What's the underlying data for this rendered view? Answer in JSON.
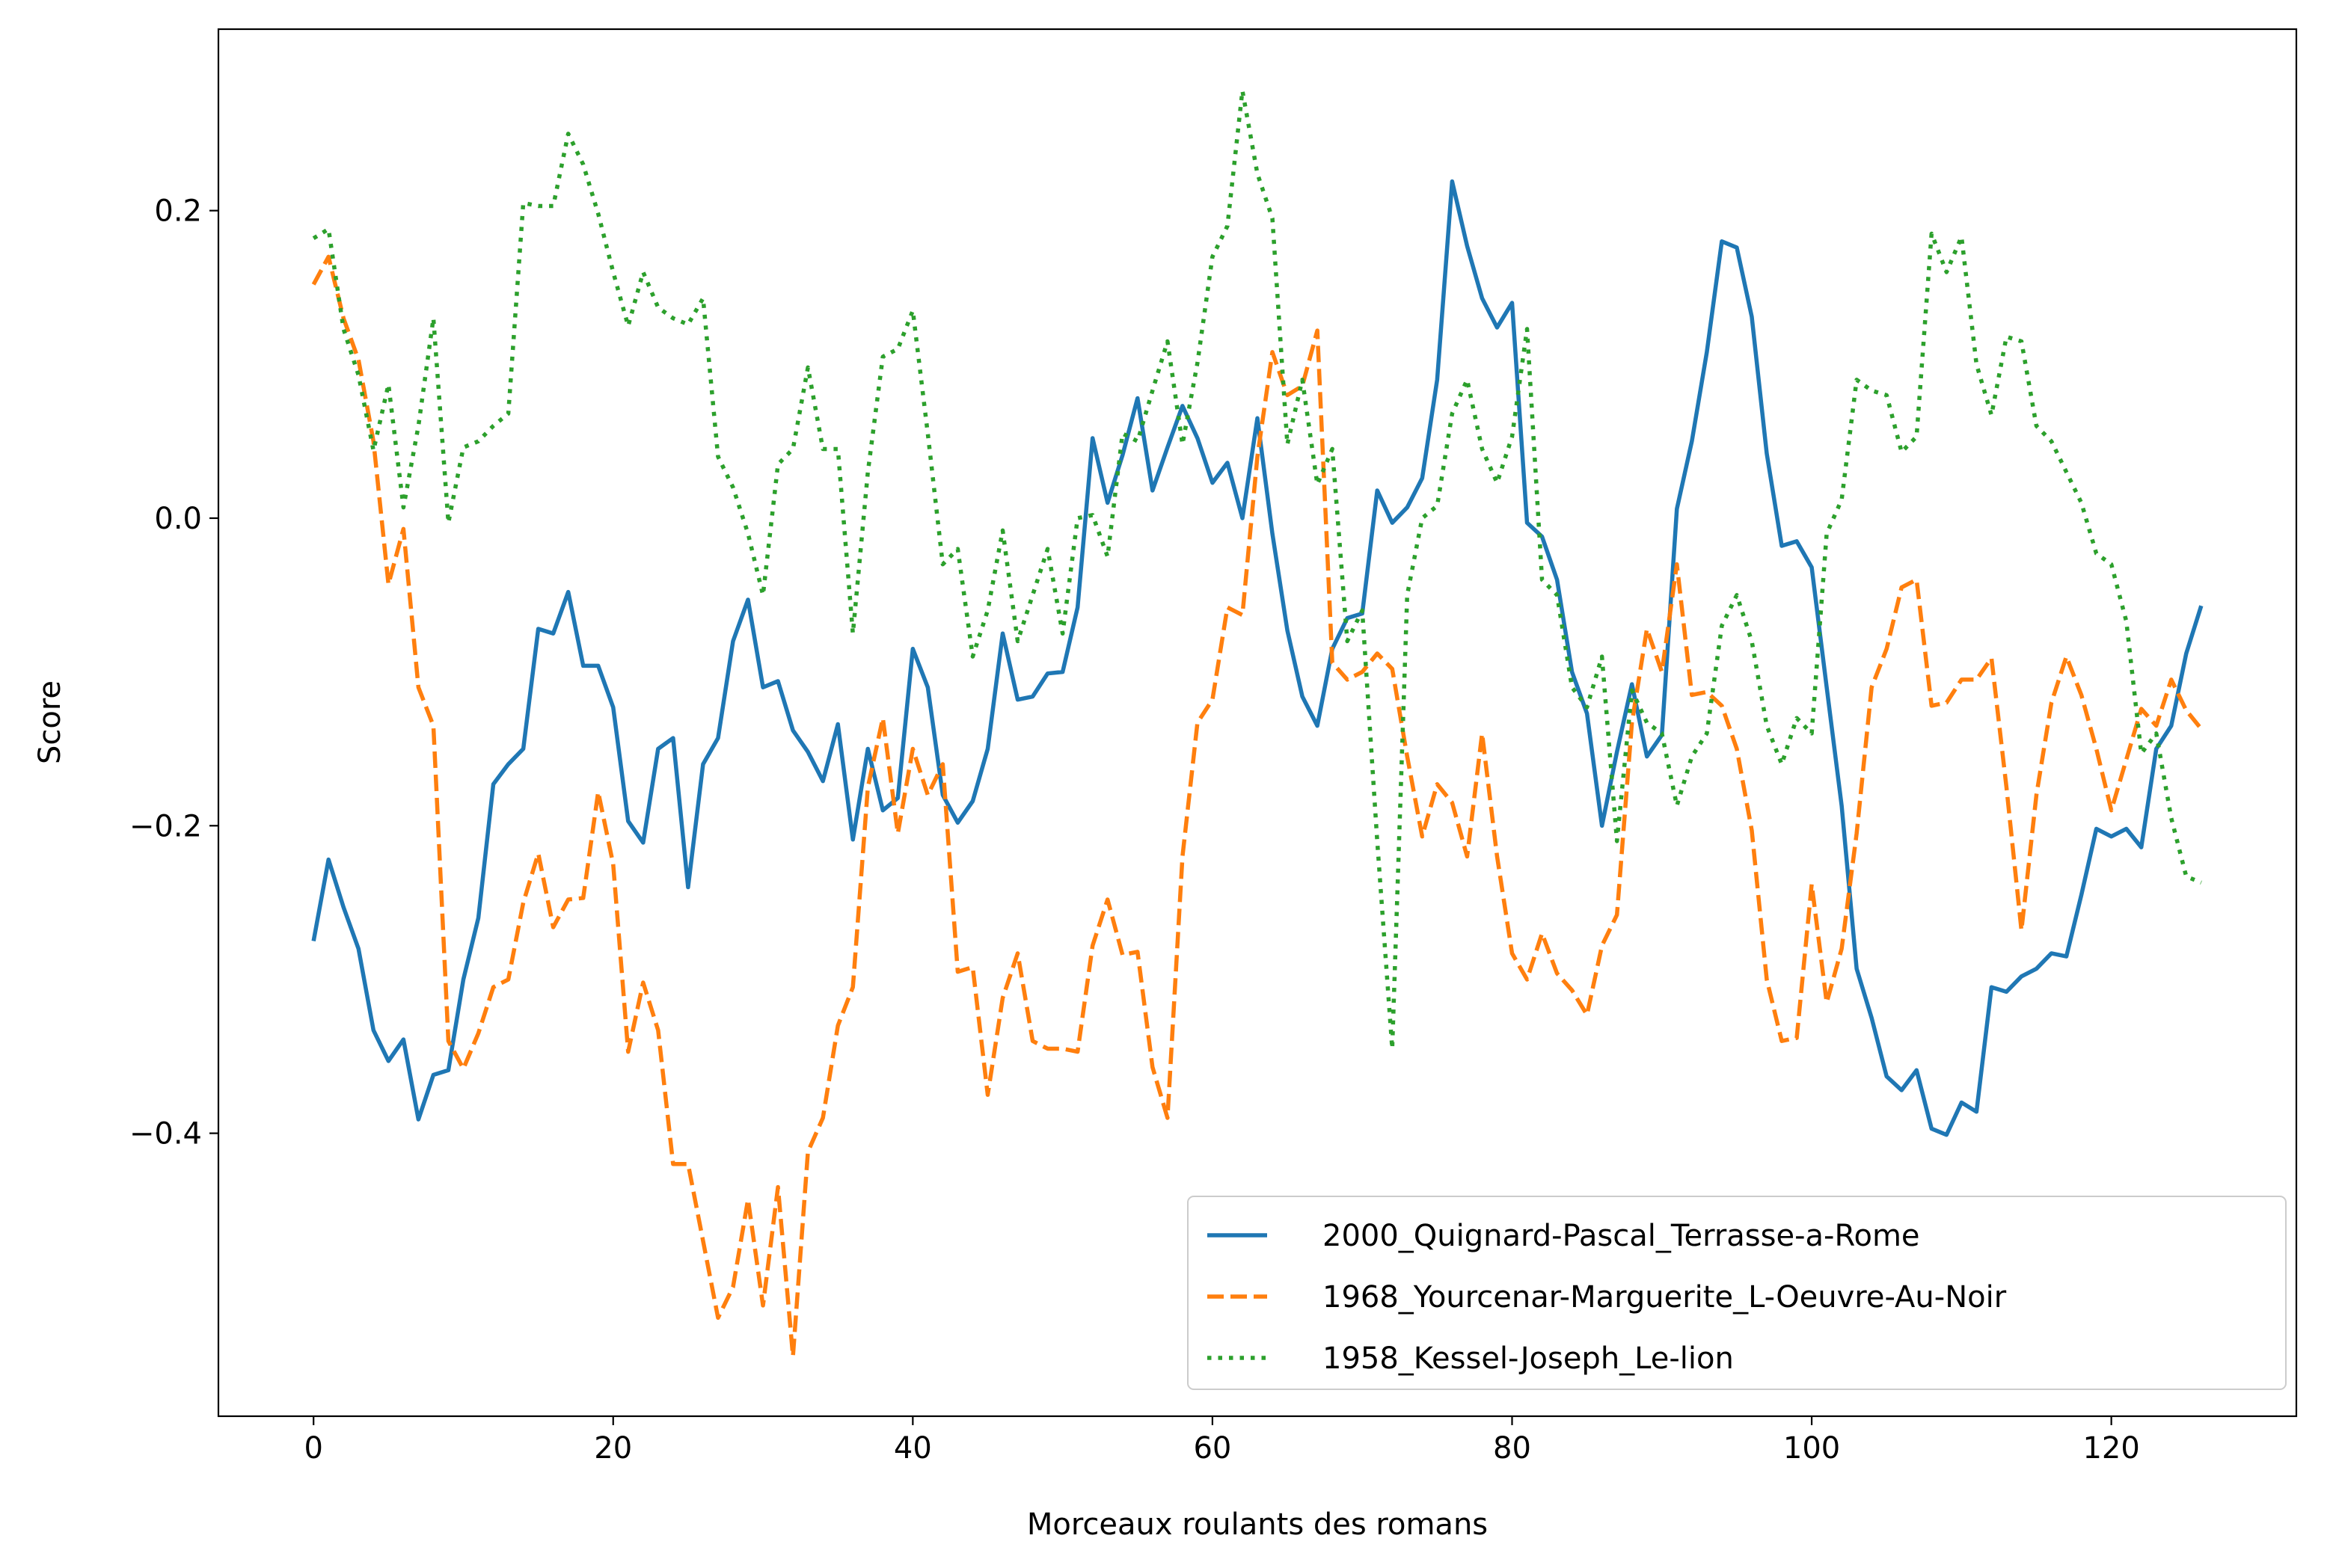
{
  "chart_data": {
    "type": "line",
    "title": "",
    "xlabel": "Morceaux roulants des romans",
    "ylabel": "Score",
    "xlim": [
      -6.35,
      132.35
    ],
    "ylim": [
      -0.584,
      0.318
    ],
    "xticks": [
      0,
      20,
      40,
      60,
      80,
      100,
      120
    ],
    "xtick_labels": [
      "0",
      "20",
      "40",
      "60",
      "80",
      "100",
      "120"
    ],
    "yticks": [
      -0.4,
      -0.2,
      0.0,
      0.2
    ],
    "ytick_labels": [
      "−0.4",
      "−0.2",
      "0.0",
      "0.2"
    ],
    "grid": false,
    "legend_position": "bottom-right",
    "series": [
      {
        "name": "2000_Quignard-Pascal_Terrasse-a-Rome",
        "color": "#1f77b4",
        "dash": "solid",
        "values": [
          -0.275,
          -0.222,
          -0.253,
          -0.28,
          -0.333,
          -0.353,
          -0.339,
          -0.391,
          -0.362,
          -0.359,
          -0.3,
          -0.26,
          -0.173,
          -0.16,
          -0.15,
          -0.072,
          -0.075,
          -0.048,
          -0.096,
          -0.096,
          -0.123,
          -0.197,
          -0.211,
          -0.15,
          -0.143,
          -0.24,
          -0.16,
          -0.143,
          -0.08,
          -0.053,
          -0.11,
          -0.106,
          -0.138,
          -0.152,
          -0.171,
          -0.134,
          -0.209,
          -0.15,
          -0.19,
          -0.182,
          -0.085,
          -0.11,
          -0.18,
          -0.198,
          -0.184,
          -0.15,
          -0.075,
          -0.118,
          -0.116,
          -0.101,
          -0.1,
          -0.058,
          0.052,
          0.01,
          0.041,
          0.078,
          0.018,
          0.046,
          0.073,
          0.052,
          0.023,
          0.036,
          0.0,
          0.065,
          -0.01,
          -0.073,
          -0.116,
          -0.135,
          -0.085,
          -0.065,
          -0.062,
          0.018,
          -0.003,
          0.007,
          0.026,
          0.09,
          0.219,
          0.177,
          0.143,
          0.124,
          0.14,
          -0.003,
          -0.012,
          -0.04,
          -0.1,
          -0.127,
          -0.2,
          -0.152,
          -0.108,
          -0.155,
          -0.141,
          0.006,
          0.05,
          0.108,
          0.18,
          0.176,
          0.131,
          0.042,
          -0.018,
          -0.015,
          -0.032,
          -0.11,
          -0.187,
          -0.293,
          -0.325,
          -0.363,
          -0.372,
          -0.359,
          -0.397,
          -0.401,
          -0.38,
          -0.386,
          -0.305,
          -0.308,
          -0.298,
          -0.293,
          -0.283,
          -0.285,
          -0.245,
          -0.202,
          -0.207,
          -0.202,
          -0.214,
          -0.15,
          -0.135,
          -0.088,
          -0.057
        ]
      },
      {
        "name": "1968_Yourcenar-Marguerite_L-Oeuvre-Au-Noir",
        "color": "#ff7f0e",
        "dash": "dashed",
        "values": [
          0.152,
          0.17,
          0.13,
          0.103,
          0.05,
          -0.043,
          -0.007,
          -0.11,
          -0.135,
          -0.34,
          -0.358,
          -0.335,
          -0.305,
          -0.3,
          -0.25,
          -0.218,
          -0.266,
          -0.248,
          -0.247,
          -0.178,
          -0.225,
          -0.347,
          -0.302,
          -0.333,
          -0.42,
          -0.42,
          -0.47,
          -0.52,
          -0.5,
          -0.443,
          -0.512,
          -0.435,
          -0.545,
          -0.412,
          -0.39,
          -0.33,
          -0.305,
          -0.175,
          -0.13,
          -0.205,
          -0.15,
          -0.18,
          -0.16,
          -0.295,
          -0.292,
          -0.375,
          -0.312,
          -0.283,
          -0.34,
          -0.345,
          -0.345,
          -0.347,
          -0.278,
          -0.248,
          -0.284,
          -0.282,
          -0.357,
          -0.39,
          -0.22,
          -0.133,
          -0.118,
          -0.058,
          -0.063,
          0.04,
          0.108,
          0.08,
          0.086,
          0.122,
          -0.094,
          -0.105,
          -0.1,
          -0.088,
          -0.098,
          -0.155,
          -0.207,
          -0.173,
          -0.185,
          -0.22,
          -0.14,
          -0.22,
          -0.283,
          -0.3,
          -0.27,
          -0.296,
          -0.307,
          -0.323,
          -0.278,
          -0.258,
          -0.133,
          -0.072,
          -0.1,
          -0.03,
          -0.115,
          -0.113,
          -0.122,
          -0.15,
          -0.203,
          -0.3,
          -0.34,
          -0.338,
          -0.238,
          -0.315,
          -0.28,
          -0.205,
          -0.11,
          -0.085,
          -0.045,
          -0.04,
          -0.122,
          -0.12,
          -0.105,
          -0.105,
          -0.091,
          -0.175,
          -0.268,
          -0.18,
          -0.12,
          -0.09,
          -0.115,
          -0.15,
          -0.19,
          -0.157,
          -0.124,
          -0.135,
          -0.105,
          -0.125,
          -0.137
        ]
      },
      {
        "name": "1958_Kessel-Joseph_Le-lion",
        "color": "#2ca02c",
        "dash": "dotted",
        "values": [
          0.182,
          0.188,
          0.123,
          0.093,
          0.044,
          0.087,
          0.007,
          0.06,
          0.13,
          -0.003,
          0.046,
          0.05,
          0.06,
          0.068,
          0.205,
          0.203,
          0.203,
          0.25,
          0.23,
          0.198,
          0.16,
          0.125,
          0.16,
          0.137,
          0.13,
          0.126,
          0.143,
          0.04,
          0.02,
          -0.01,
          -0.05,
          0.035,
          0.045,
          0.098,
          0.045,
          0.045,
          -0.075,
          0.03,
          0.105,
          0.11,
          0.135,
          0.055,
          -0.03,
          -0.02,
          -0.09,
          -0.06,
          -0.008,
          -0.08,
          -0.05,
          -0.02,
          -0.075,
          0.0,
          0.002,
          -0.025,
          0.055,
          0.05,
          0.083,
          0.115,
          0.048,
          0.101,
          0.17,
          0.19,
          0.278,
          0.224,
          0.195,
          0.048,
          0.09,
          0.022,
          0.045,
          -0.08,
          -0.06,
          -0.21,
          -0.345,
          -0.05,
          0.0,
          0.008,
          0.068,
          0.09,
          0.045,
          0.023,
          0.053,
          0.123,
          -0.04,
          -0.05,
          -0.11,
          -0.123,
          -0.09,
          -0.21,
          -0.112,
          -0.133,
          -0.14,
          -0.187,
          -0.155,
          -0.14,
          -0.07,
          -0.05,
          -0.08,
          -0.135,
          -0.16,
          -0.13,
          -0.14,
          -0.01,
          0.012,
          0.09,
          0.083,
          0.08,
          0.043,
          0.053,
          0.185,
          0.16,
          0.183,
          0.1,
          0.067,
          0.118,
          0.115,
          0.06,
          0.05,
          0.03,
          0.01,
          -0.023,
          -0.03,
          -0.067,
          -0.153,
          -0.14,
          -0.195,
          -0.233,
          -0.237
        ]
      }
    ]
  }
}
